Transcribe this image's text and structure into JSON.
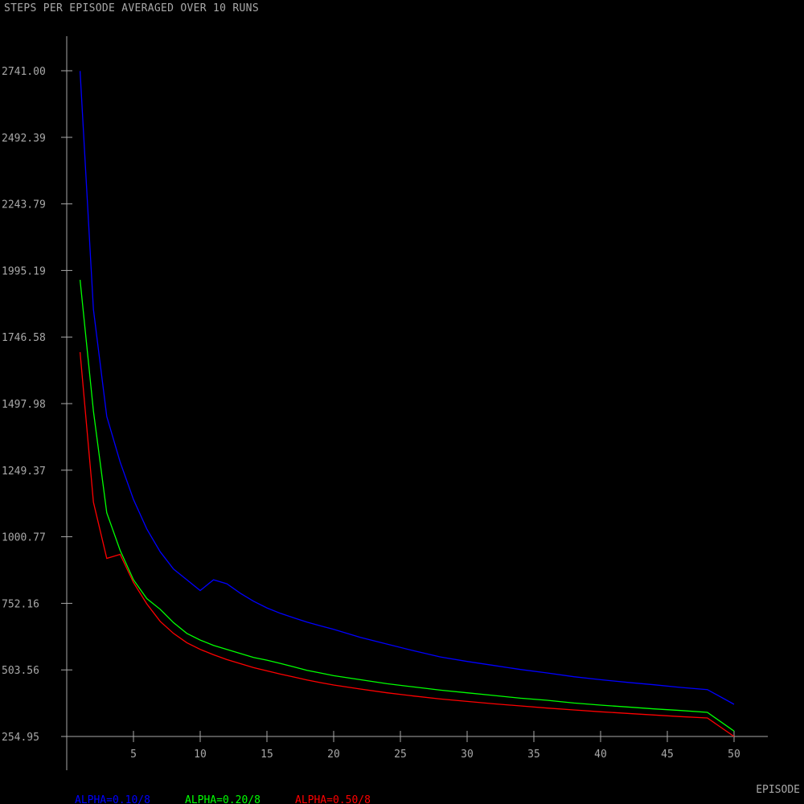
{
  "chart_data": {
    "type": "line",
    "title": "STEPS PER EPISODE AVERAGED OVER 10 RUNS",
    "xlabel": "EPISODE",
    "ylabel": "",
    "xlim": [
      0,
      50
    ],
    "ylim": [
      254.95,
      2741.0
    ],
    "xticks": [
      5,
      10,
      15,
      20,
      25,
      30,
      35,
      40,
      45,
      50
    ],
    "yticks": [
      "254.95",
      "503.56",
      "752.16",
      "1000.77",
      "1249.37",
      "1497.98",
      "1746.58",
      "1995.19",
      "2243.79",
      "2492.39",
      "2741.00"
    ],
    "grid": false,
    "legend_position": "bottom-left",
    "series": [
      {
        "name": "ALPHA=0.10/8",
        "color": "#0000ff",
        "x": [
          1,
          2,
          3,
          4,
          5,
          6,
          7,
          8,
          9,
          10,
          11,
          12,
          13,
          14,
          15,
          16,
          17,
          18,
          19,
          20,
          22,
          24,
          26,
          28,
          30,
          32,
          34,
          36,
          38,
          40,
          42,
          44,
          46,
          48,
          50
        ],
        "y": [
          2740,
          1850,
          1450,
          1280,
          1140,
          1030,
          945,
          880,
          840,
          800,
          840,
          825,
          790,
          760,
          735,
          715,
          698,
          682,
          668,
          655,
          625,
          600,
          575,
          552,
          535,
          520,
          505,
          492,
          478,
          467,
          457,
          448,
          438,
          430,
          375
        ]
      },
      {
        "name": "ALPHA=0.20/8",
        "color": "#00ff00",
        "x": [
          1,
          2,
          3,
          4,
          5,
          6,
          7,
          8,
          9,
          10,
          11,
          12,
          13,
          14,
          15,
          16,
          17,
          18,
          19,
          20,
          22,
          24,
          26,
          28,
          30,
          32,
          34,
          36,
          38,
          40,
          42,
          44,
          46,
          48,
          50
        ],
        "y": [
          1960,
          1470,
          1090,
          950,
          840,
          770,
          730,
          680,
          640,
          615,
          595,
          580,
          565,
          550,
          540,
          528,
          515,
          502,
          492,
          482,
          467,
          452,
          440,
          428,
          418,
          408,
          398,
          390,
          380,
          372,
          365,
          358,
          352,
          345,
          275
        ]
      },
      {
        "name": "ALPHA=0.50/8",
        "color": "#ff0000",
        "x": [
          1,
          2,
          3,
          4,
          5,
          6,
          7,
          8,
          9,
          10,
          11,
          12,
          13,
          14,
          15,
          16,
          17,
          18,
          19,
          20,
          22,
          24,
          26,
          28,
          30,
          32,
          34,
          36,
          38,
          40,
          42,
          44,
          46,
          48,
          50
        ],
        "y": [
          1690,
          1130,
          920,
          935,
          830,
          750,
          685,
          640,
          605,
          580,
          560,
          542,
          527,
          512,
          500,
          488,
          477,
          466,
          456,
          447,
          432,
          418,
          406,
          395,
          386,
          377,
          369,
          361,
          354,
          347,
          341,
          335,
          329,
          324,
          255
        ]
      }
    ]
  }
}
